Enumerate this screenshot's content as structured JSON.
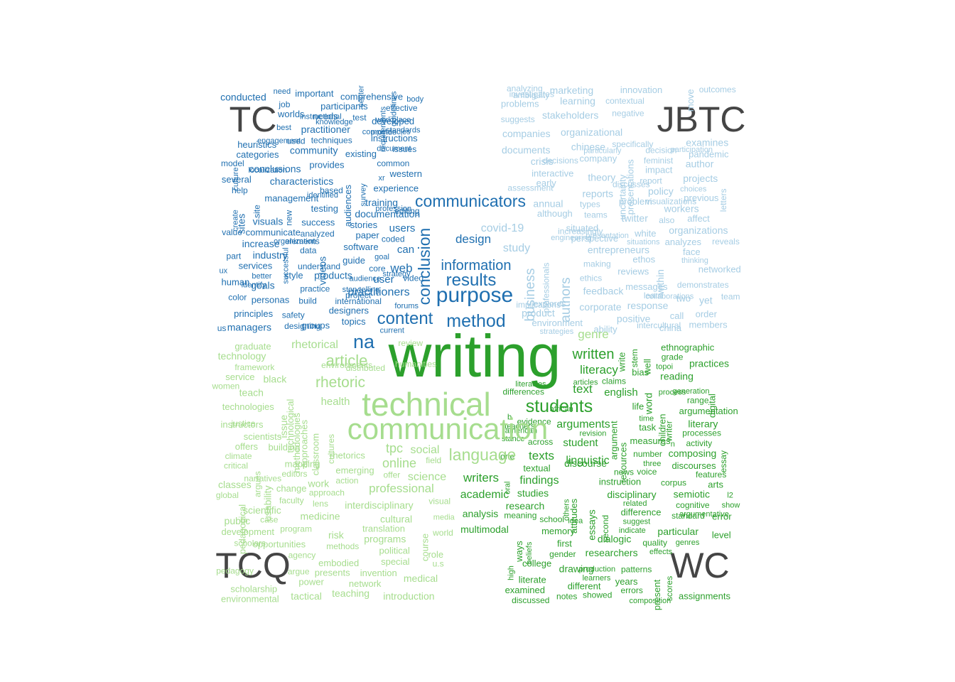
{
  "corner_labels": [
    "TC",
    "JBTC",
    "TCQ",
    "WC"
  ],
  "colors": {
    "corner": "#454545",
    "dark_blue": "#1f6fb0",
    "light_blue": "#a6cde4",
    "dark_green": "#2ca02c",
    "light_green": "#a6dd8e"
  },
  "words": {
    "dark_blue": [
      "communicators",
      "purpose",
      "results",
      "method",
      "content",
      "information",
      "conclusion",
      "na",
      "design",
      "practitioners",
      "web",
      "users",
      "user",
      "can",
      "software",
      "videos",
      "documentation",
      "community",
      "conclusions",
      "sites",
      "training",
      "conducted",
      "products",
      "characteristics",
      "practitioner",
      "managers",
      "visuals",
      "industry",
      "goals",
      "increase",
      "needs",
      "style",
      "designers",
      "groups",
      "stories",
      "provides",
      "management",
      "participants",
      "important",
      "developed",
      "instructions",
      "testing",
      "services",
      "personas",
      "western",
      "existing",
      "success",
      "experience",
      "principles",
      "categories",
      "comprehensive",
      "heuristics",
      "audiences",
      "communicate",
      "paper",
      "several",
      "human",
      "guide",
      "worlds",
      "topics",
      "issues",
      "international",
      "build",
      "color",
      "common",
      "practice",
      "core",
      "techniques",
      "safety",
      "new",
      "coded",
      "elements",
      "effective",
      "understand",
      "designing",
      "value",
      "analyzed",
      "site",
      "test",
      "video",
      "part",
      "us",
      "based",
      "job",
      "help",
      "model",
      "data",
      "used",
      "editing",
      "project",
      "xr",
      "better",
      "best",
      "survey",
      "guidelines",
      "current",
      "strategy",
      "instructional",
      "knowledge",
      "storytelling",
      "need",
      "create",
      "standards",
      "requirements",
      "engagement",
      "organization",
      "body",
      "identified",
      "audience",
      "successful",
      "workplace",
      "culture",
      "profession",
      "forums",
      "center",
      "document",
      "competencies",
      "localization",
      "goal",
      "provide",
      "identify",
      "ux"
    ],
    "light_blue": [
      "business",
      "authors",
      "author",
      "study",
      "covid-19",
      "response",
      "twitter",
      "within",
      "chinese",
      "learning",
      "policy",
      "positive",
      "companies",
      "feedback",
      "reports",
      "yet",
      "corporate",
      "crisis",
      "stakeholders",
      "theory",
      "product",
      "marketing",
      "organizational",
      "examines",
      "organizations",
      "workers",
      "entrepreneurs",
      "annual",
      "documents",
      "projects",
      "company",
      "early",
      "call",
      "two",
      "white",
      "face",
      "order",
      "impact",
      "reviews",
      "environment",
      "interactive",
      "analyzes",
      "situated",
      "affect",
      "perspective",
      "ethos",
      "pandemic",
      "members",
      "messages",
      "china",
      "problems",
      "although",
      "presentations",
      "move",
      "networked",
      "innovation",
      "previous",
      "uncertainty",
      "problem",
      "ability",
      "ethics",
      "explores",
      "professionals",
      "outcomes",
      "demonstrates",
      "intercultural",
      "analyzing",
      "decision",
      "implications",
      "team",
      "making",
      "types",
      "learn",
      "contextual",
      "investigates",
      "negative",
      "letters",
      "feminist",
      "report",
      "also",
      "increasingly",
      "assessment",
      "reveals",
      "discusses",
      "ambiguity",
      "visualizations",
      "specifically",
      "suggests",
      "decisions",
      "teams",
      "engineering",
      "thinking",
      "particularly",
      "strategies",
      "collaborations",
      "situations",
      "presentation",
      "participation",
      "choices"
    ],
    "dark_green": [
      "writing",
      "students",
      "written",
      "literacy",
      "text",
      "english",
      "discourse",
      "arguments",
      "student",
      "linguistic",
      "texts",
      "findings",
      "writers",
      "academic",
      "studies",
      "research",
      "analysis",
      "essays",
      "multimodal",
      "composing",
      "reading",
      "practices",
      "researchers",
      "particular",
      "drawing",
      "literary",
      "semiotic",
      "disciplinary",
      "dialogic",
      "word",
      "literate",
      "measures",
      "error",
      "years",
      "different",
      "ethnographic",
      "difference",
      "argumentation",
      "instruction",
      "children",
      "discourses",
      "arts",
      "memory",
      "bias",
      "digital",
      "textual",
      "life",
      "examined",
      "attitudes",
      "present",
      "assignments",
      "ways",
      "level",
      "resources",
      "argument",
      "write",
      "task",
      "first",
      "well",
      "college",
      "corpus",
      "quality",
      "one",
      "across",
      "school",
      "processes",
      "claims",
      "errors",
      "activity",
      "standard",
      "second",
      "patterns",
      "gender",
      "meaning",
      "number",
      "discussed",
      "showed",
      "stem",
      "differences",
      "range",
      "evidence",
      "news",
      "grade",
      "essay",
      "notes",
      "cognitive",
      "scores",
      "voice",
      "features",
      "writer",
      "argumentative",
      "composition",
      "genres",
      "learners",
      "american",
      "articles",
      "suggest",
      "indicate",
      "others",
      "generation",
      "high",
      "three",
      "time",
      "process",
      "beliefs",
      "stance",
      "teachers",
      "african",
      "idea",
      "related",
      "effects",
      "production",
      "literacies",
      "n",
      "b",
      "oral",
      "show",
      "l2",
      "revision",
      "topoi"
    ],
    "light_green": [
      "technical",
      "communication",
      "article",
      "rhetoric",
      "rhetorical",
      "language",
      "tpc",
      "social",
      "online",
      "science",
      "professional",
      "health",
      "work",
      "medical",
      "technology",
      "usability",
      "scientific",
      "public",
      "programs",
      "cultural",
      "tactical",
      "teach",
      "medicine",
      "black",
      "teaching",
      "interdisciplinary",
      "risk",
      "introduction",
      "classes",
      "issue",
      "instructors",
      "technologies",
      "classroom",
      "special",
      "methodologies",
      "embodied",
      "scientists",
      "rhetorics",
      "network",
      "change",
      "power",
      "service",
      "presents",
      "mapping",
      "graduate",
      "role",
      "political",
      "opportunities",
      "approaches",
      "development",
      "course",
      "offers",
      "pedagogical",
      "translation",
      "environmental",
      "emerging",
      "scholarship",
      "technological",
      "invention",
      "building",
      "framework",
      "methods",
      "approach",
      "climate",
      "program",
      "u.s",
      "global",
      "argues",
      "argue",
      "editors",
      "distributed",
      "critical",
      "humanities",
      "pedagogy",
      "environments",
      "visual",
      "faculty",
      "action",
      "women",
      "agency",
      "justice",
      "scholars",
      "narratives",
      "cultures",
      "review",
      "case",
      "lens",
      "field",
      "world",
      "offer",
      "media",
      "genre"
    ]
  }
}
